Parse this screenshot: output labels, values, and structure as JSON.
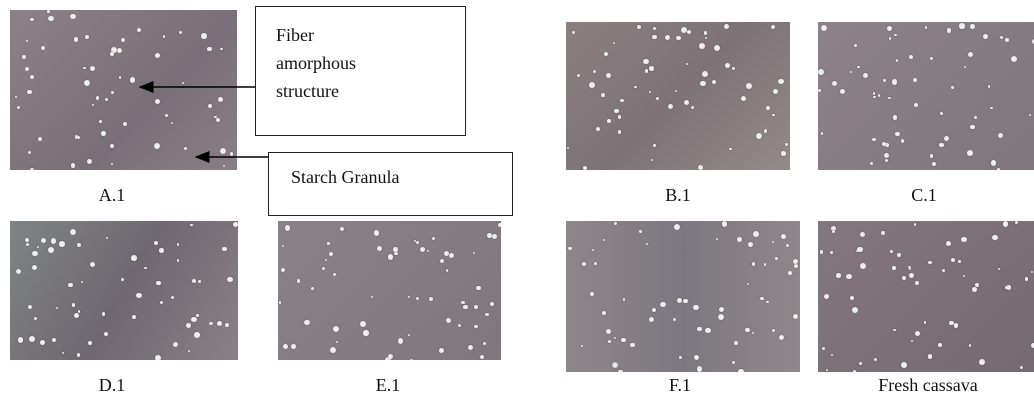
{
  "panels": [
    {
      "label": "A.1"
    },
    {
      "label": "B.1"
    },
    {
      "label": "C.1"
    },
    {
      "label": "D.1"
    },
    {
      "label": "E.1"
    },
    {
      "label": "F.1"
    },
    {
      "label": "Fresh cassava"
    }
  ],
  "annotations": [
    {
      "text": "Fiber amorphous structure"
    },
    {
      "text": "Starch Granula"
    }
  ]
}
